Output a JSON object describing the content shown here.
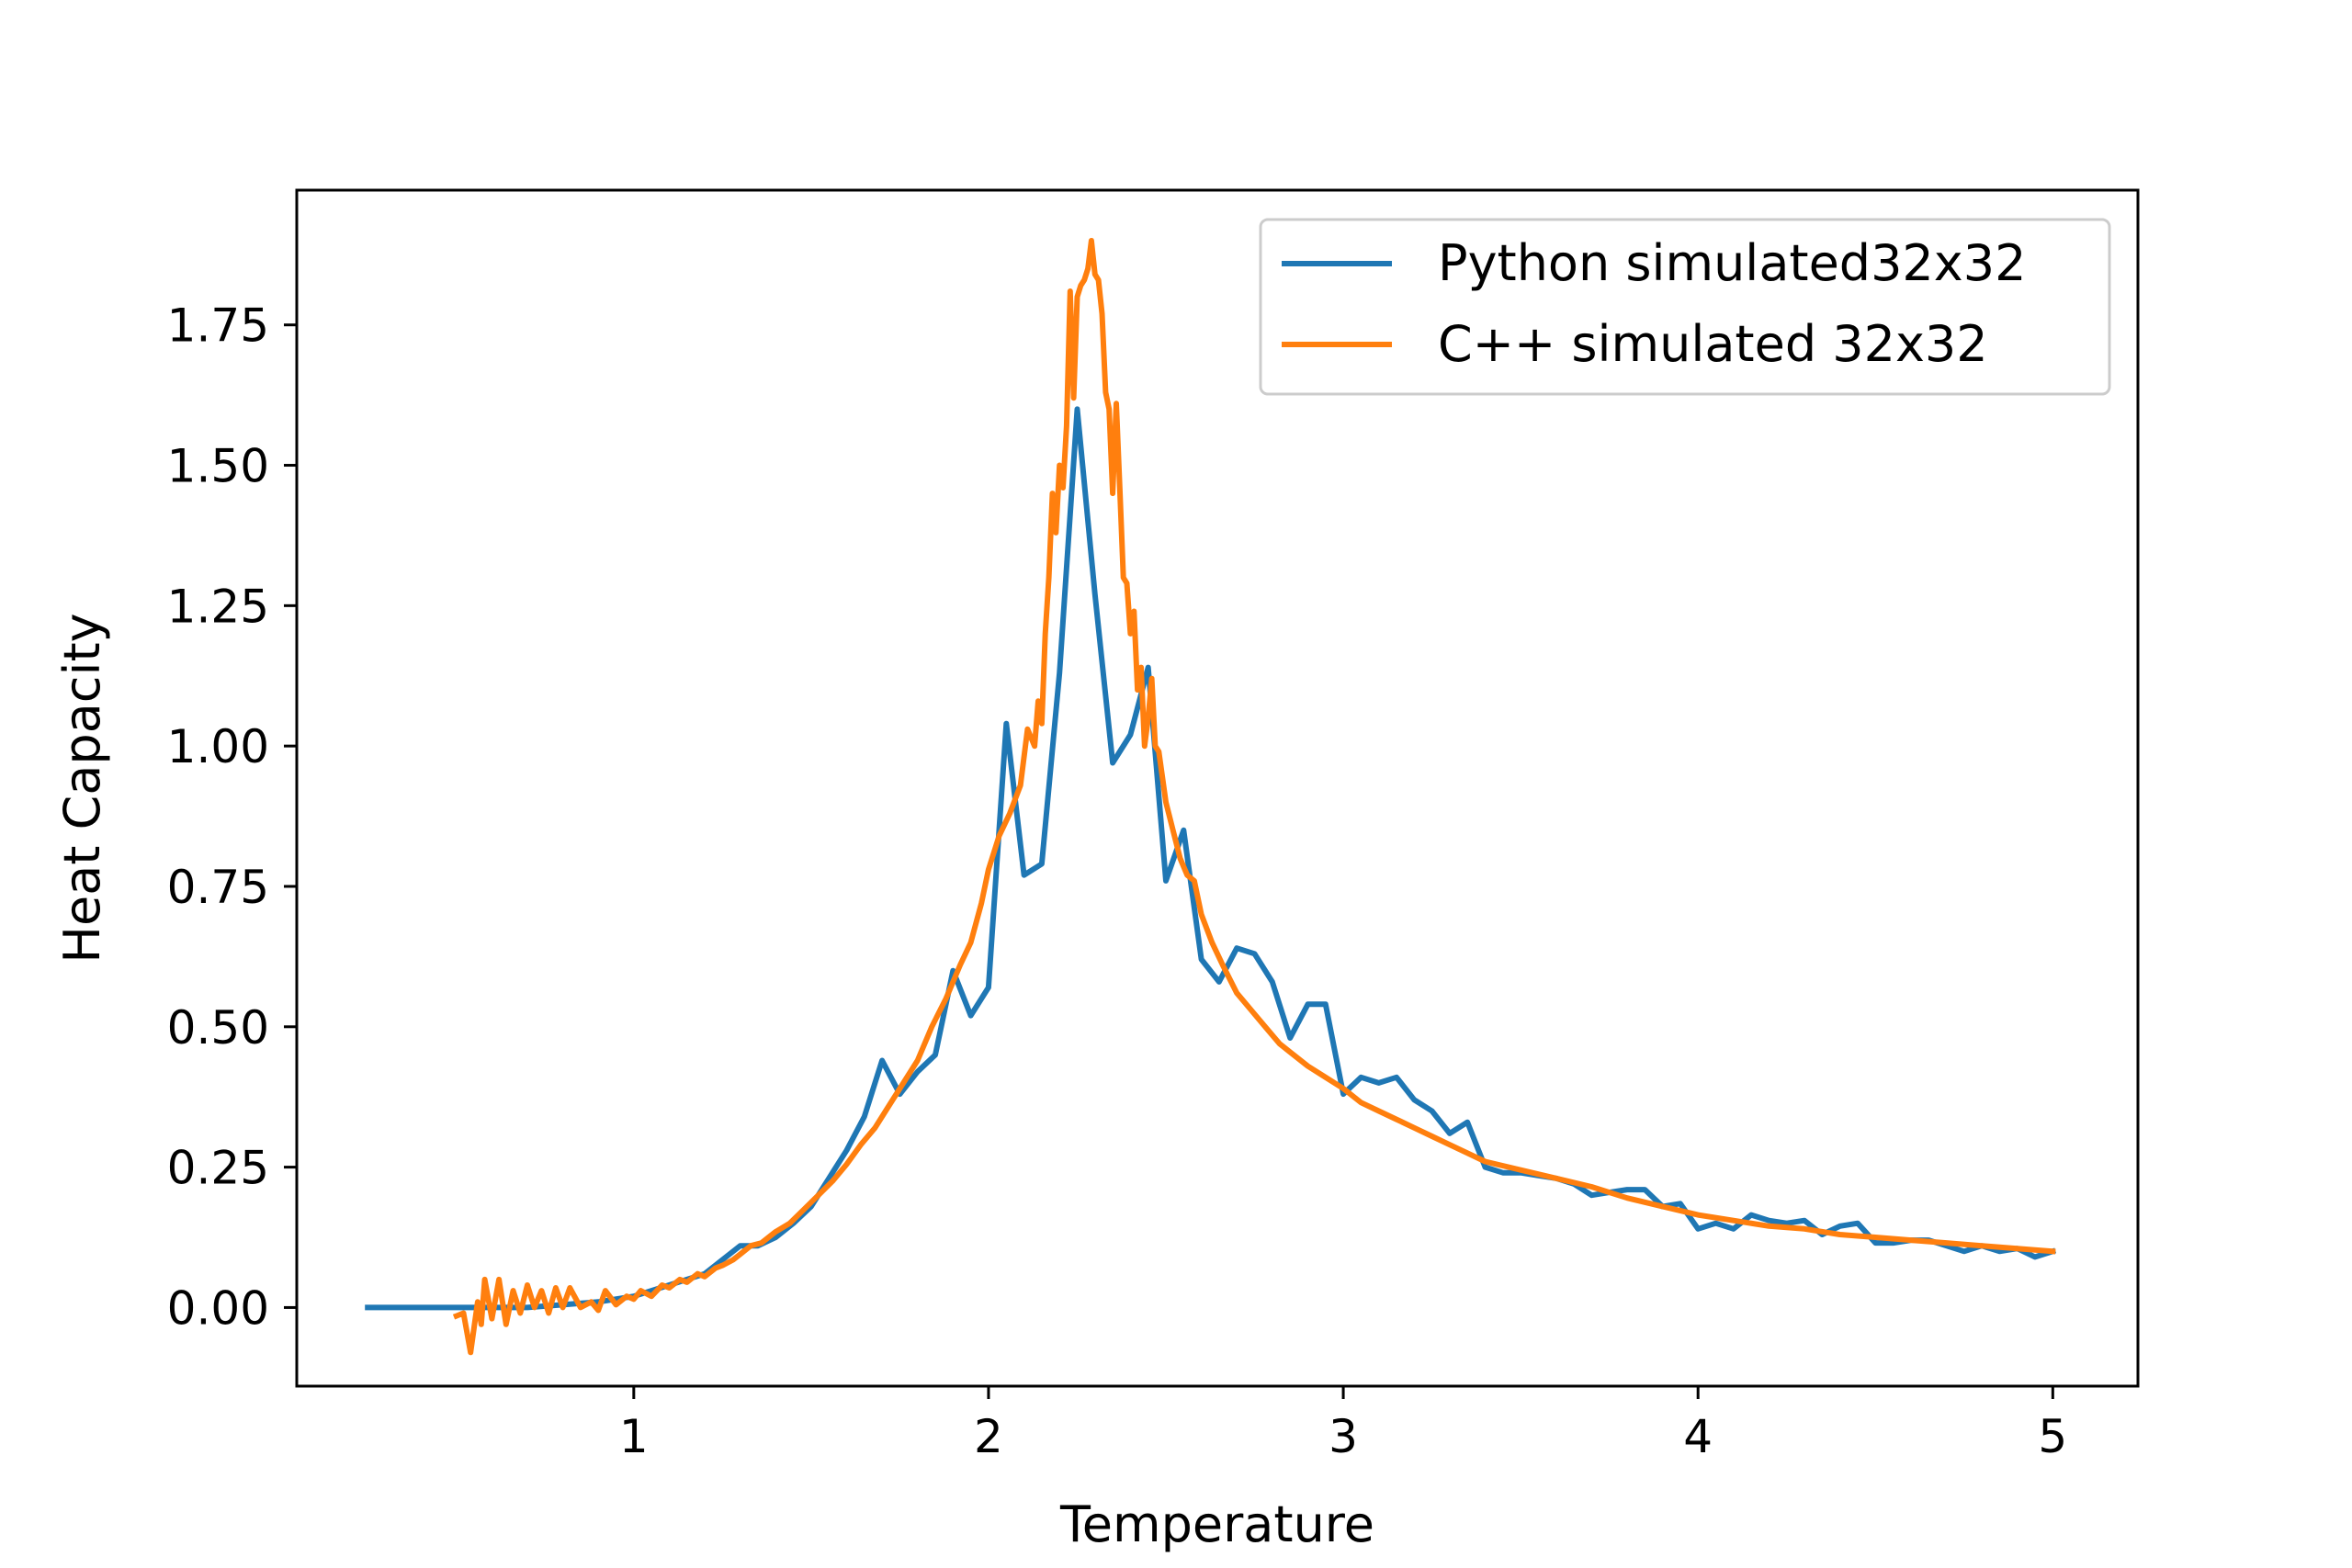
{
  "chart_data": {
    "type": "line",
    "title": "",
    "xlabel": "Temperature",
    "ylabel": "Heat Capacity",
    "xlim": [
      0.05,
      5.24
    ],
    "ylim": [
      -0.14,
      1.99
    ],
    "x_ticks": [
      {
        "value": 1,
        "label": "1"
      },
      {
        "value": 2,
        "label": "2"
      },
      {
        "value": 3,
        "label": "3"
      },
      {
        "value": 4,
        "label": "4"
      },
      {
        "value": 5,
        "label": "5"
      }
    ],
    "y_ticks": [
      {
        "value": 0.0,
        "label": "0.00"
      },
      {
        "value": 0.25,
        "label": "0.25"
      },
      {
        "value": 0.5,
        "label": "0.50"
      },
      {
        "value": 0.75,
        "label": "0.75"
      },
      {
        "value": 1.0,
        "label": "1.00"
      },
      {
        "value": 1.25,
        "label": "1.25"
      },
      {
        "value": 1.5,
        "label": "1.50"
      },
      {
        "value": 1.75,
        "label": "1.75"
      }
    ],
    "grid": false,
    "legend_position": "top-right",
    "series": [
      {
        "name": "Python simulated32x32",
        "color": "#1f77b4",
        "points": [
          [
            0.25,
            0.0
          ],
          [
            0.4,
            0.0
          ],
          [
            0.55,
            0.0
          ],
          [
            0.7,
            0.0
          ],
          [
            0.8,
            0.005
          ],
          [
            0.9,
            0.01
          ],
          [
            1.0,
            0.02
          ],
          [
            1.1,
            0.04
          ],
          [
            1.2,
            0.06
          ],
          [
            1.3,
            0.11
          ],
          [
            1.35,
            0.11
          ],
          [
            1.4,
            0.125
          ],
          [
            1.45,
            0.15
          ],
          [
            1.5,
            0.18
          ],
          [
            1.55,
            0.23
          ],
          [
            1.6,
            0.28
          ],
          [
            1.65,
            0.34
          ],
          [
            1.7,
            0.44
          ],
          [
            1.75,
            0.38
          ],
          [
            1.8,
            0.42
          ],
          [
            1.85,
            0.45
          ],
          [
            1.9,
            0.6
          ],
          [
            1.95,
            0.52
          ],
          [
            2.0,
            0.57
          ],
          [
            2.05,
            1.04
          ],
          [
            2.1,
            0.77
          ],
          [
            2.15,
            0.79
          ],
          [
            2.2,
            1.13
          ],
          [
            2.25,
            1.6
          ],
          [
            2.3,
            1.27
          ],
          [
            2.35,
            0.97
          ],
          [
            2.4,
            1.02
          ],
          [
            2.45,
            1.14
          ],
          [
            2.5,
            0.76
          ],
          [
            2.55,
            0.85
          ],
          [
            2.6,
            0.62
          ],
          [
            2.65,
            0.58
          ],
          [
            2.7,
            0.64
          ],
          [
            2.75,
            0.63
          ],
          [
            2.8,
            0.58
          ],
          [
            2.85,
            0.48
          ],
          [
            2.9,
            0.54
          ],
          [
            2.95,
            0.54
          ],
          [
            3.0,
            0.38
          ],
          [
            3.05,
            0.41
          ],
          [
            3.1,
            0.4
          ],
          [
            3.15,
            0.41
          ],
          [
            3.2,
            0.37
          ],
          [
            3.25,
            0.35
          ],
          [
            3.3,
            0.31
          ],
          [
            3.35,
            0.33
          ],
          [
            3.4,
            0.25
          ],
          [
            3.45,
            0.24
          ],
          [
            3.5,
            0.24
          ],
          [
            3.55,
            0.235
          ],
          [
            3.6,
            0.23
          ],
          [
            3.65,
            0.22
          ],
          [
            3.7,
            0.2
          ],
          [
            3.75,
            0.205
          ],
          [
            3.8,
            0.21
          ],
          [
            3.85,
            0.21
          ],
          [
            3.9,
            0.18
          ],
          [
            3.95,
            0.185
          ],
          [
            4.0,
            0.14
          ],
          [
            4.05,
            0.15
          ],
          [
            4.1,
            0.14
          ],
          [
            4.15,
            0.165
          ],
          [
            4.2,
            0.155
          ],
          [
            4.25,
            0.15
          ],
          [
            4.3,
            0.155
          ],
          [
            4.35,
            0.13
          ],
          [
            4.4,
            0.145
          ],
          [
            4.45,
            0.15
          ],
          [
            4.5,
            0.115
          ],
          [
            4.55,
            0.115
          ],
          [
            4.6,
            0.12
          ],
          [
            4.65,
            0.12
          ],
          [
            4.7,
            0.11
          ],
          [
            4.75,
            0.1
          ],
          [
            4.8,
            0.11
          ],
          [
            4.85,
            0.1
          ],
          [
            4.9,
            0.105
          ],
          [
            4.95,
            0.09
          ],
          [
            5.0,
            0.1
          ]
        ]
      },
      {
        "name": "C++ simulated 32x32",
        "color": "#ff7f0e",
        "points": [
          [
            0.5,
            -0.015
          ],
          [
            0.52,
            -0.01
          ],
          [
            0.54,
            -0.08
          ],
          [
            0.56,
            0.01
          ],
          [
            0.57,
            -0.03
          ],
          [
            0.58,
            0.05
          ],
          [
            0.6,
            -0.02
          ],
          [
            0.62,
            0.05
          ],
          [
            0.64,
            -0.03
          ],
          [
            0.66,
            0.03
          ],
          [
            0.68,
            -0.01
          ],
          [
            0.7,
            0.04
          ],
          [
            0.72,
            0.0
          ],
          [
            0.74,
            0.03
          ],
          [
            0.76,
            -0.01
          ],
          [
            0.78,
            0.035
          ],
          [
            0.8,
            0.0
          ],
          [
            0.82,
            0.035
          ],
          [
            0.85,
            0.0
          ],
          [
            0.88,
            0.01
          ],
          [
            0.9,
            -0.005
          ],
          [
            0.92,
            0.03
          ],
          [
            0.95,
            0.005
          ],
          [
            0.98,
            0.02
          ],
          [
            1.0,
            0.015
          ],
          [
            1.02,
            0.03
          ],
          [
            1.05,
            0.02
          ],
          [
            1.08,
            0.04
          ],
          [
            1.1,
            0.035
          ],
          [
            1.13,
            0.05
          ],
          [
            1.15,
            0.045
          ],
          [
            1.18,
            0.06
          ],
          [
            1.2,
            0.055
          ],
          [
            1.23,
            0.07
          ],
          [
            1.25,
            0.075
          ],
          [
            1.28,
            0.085
          ],
          [
            1.3,
            0.095
          ],
          [
            1.33,
            0.11
          ],
          [
            1.36,
            0.115
          ],
          [
            1.4,
            0.135
          ],
          [
            1.44,
            0.15
          ],
          [
            1.48,
            0.175
          ],
          [
            1.52,
            0.2
          ],
          [
            1.56,
            0.225
          ],
          [
            1.6,
            0.255
          ],
          [
            1.64,
            0.29
          ],
          [
            1.68,
            0.32
          ],
          [
            1.72,
            0.36
          ],
          [
            1.76,
            0.4
          ],
          [
            1.8,
            0.44
          ],
          [
            1.84,
            0.5
          ],
          [
            1.88,
            0.55
          ],
          [
            1.92,
            0.61
          ],
          [
            1.95,
            0.65
          ],
          [
            1.98,
            0.72
          ],
          [
            2.0,
            0.78
          ],
          [
            2.03,
            0.84
          ],
          [
            2.06,
            0.88
          ],
          [
            2.09,
            0.93
          ],
          [
            2.11,
            1.03
          ],
          [
            2.13,
            1.0
          ],
          [
            2.14,
            1.08
          ],
          [
            2.15,
            1.04
          ],
          [
            2.16,
            1.2
          ],
          [
            2.17,
            1.3
          ],
          [
            2.18,
            1.45
          ],
          [
            2.19,
            1.38
          ],
          [
            2.2,
            1.5
          ],
          [
            2.21,
            1.46
          ],
          [
            2.22,
            1.57
          ],
          [
            2.23,
            1.81
          ],
          [
            2.24,
            1.62
          ],
          [
            2.25,
            1.8
          ],
          [
            2.26,
            1.82
          ],
          [
            2.27,
            1.83
          ],
          [
            2.28,
            1.85
          ],
          [
            2.29,
            1.9
          ],
          [
            2.3,
            1.84
          ],
          [
            2.31,
            1.83
          ],
          [
            2.32,
            1.77
          ],
          [
            2.33,
            1.63
          ],
          [
            2.34,
            1.6
          ],
          [
            2.35,
            1.45
          ],
          [
            2.36,
            1.61
          ],
          [
            2.37,
            1.46
          ],
          [
            2.38,
            1.3
          ],
          [
            2.39,
            1.29
          ],
          [
            2.4,
            1.2
          ],
          [
            2.41,
            1.24
          ],
          [
            2.42,
            1.1
          ],
          [
            2.43,
            1.14
          ],
          [
            2.44,
            1.0
          ],
          [
            2.45,
            1.05
          ],
          [
            2.46,
            1.12
          ],
          [
            2.47,
            1.0
          ],
          [
            2.48,
            0.99
          ],
          [
            2.5,
            0.9
          ],
          [
            2.52,
            0.85
          ],
          [
            2.54,
            0.8
          ],
          [
            2.56,
            0.77
          ],
          [
            2.58,
            0.76
          ],
          [
            2.6,
            0.7
          ],
          [
            2.63,
            0.65
          ],
          [
            2.66,
            0.61
          ],
          [
            2.7,
            0.56
          ],
          [
            2.74,
            0.53
          ],
          [
            2.78,
            0.5
          ],
          [
            2.82,
            0.47
          ],
          [
            2.86,
            0.45
          ],
          [
            2.9,
            0.43
          ],
          [
            2.95,
            0.41
          ],
          [
            3.0,
            0.39
          ],
          [
            3.05,
            0.365
          ],
          [
            3.1,
            0.35
          ],
          [
            3.15,
            0.335
          ],
          [
            3.2,
            0.32
          ],
          [
            3.25,
            0.305
          ],
          [
            3.3,
            0.29
          ],
          [
            3.35,
            0.275
          ],
          [
            3.4,
            0.26
          ],
          [
            3.5,
            0.245
          ],
          [
            3.6,
            0.23
          ],
          [
            3.7,
            0.215
          ],
          [
            3.8,
            0.195
          ],
          [
            3.9,
            0.18
          ],
          [
            4.0,
            0.165
          ],
          [
            4.1,
            0.155
          ],
          [
            4.2,
            0.145
          ],
          [
            4.3,
            0.14
          ],
          [
            4.4,
            0.13
          ],
          [
            4.5,
            0.125
          ],
          [
            4.6,
            0.12
          ],
          [
            4.7,
            0.115
          ],
          [
            4.8,
            0.11
          ],
          [
            4.9,
            0.105
          ],
          [
            5.0,
            0.1
          ]
        ]
      }
    ]
  }
}
